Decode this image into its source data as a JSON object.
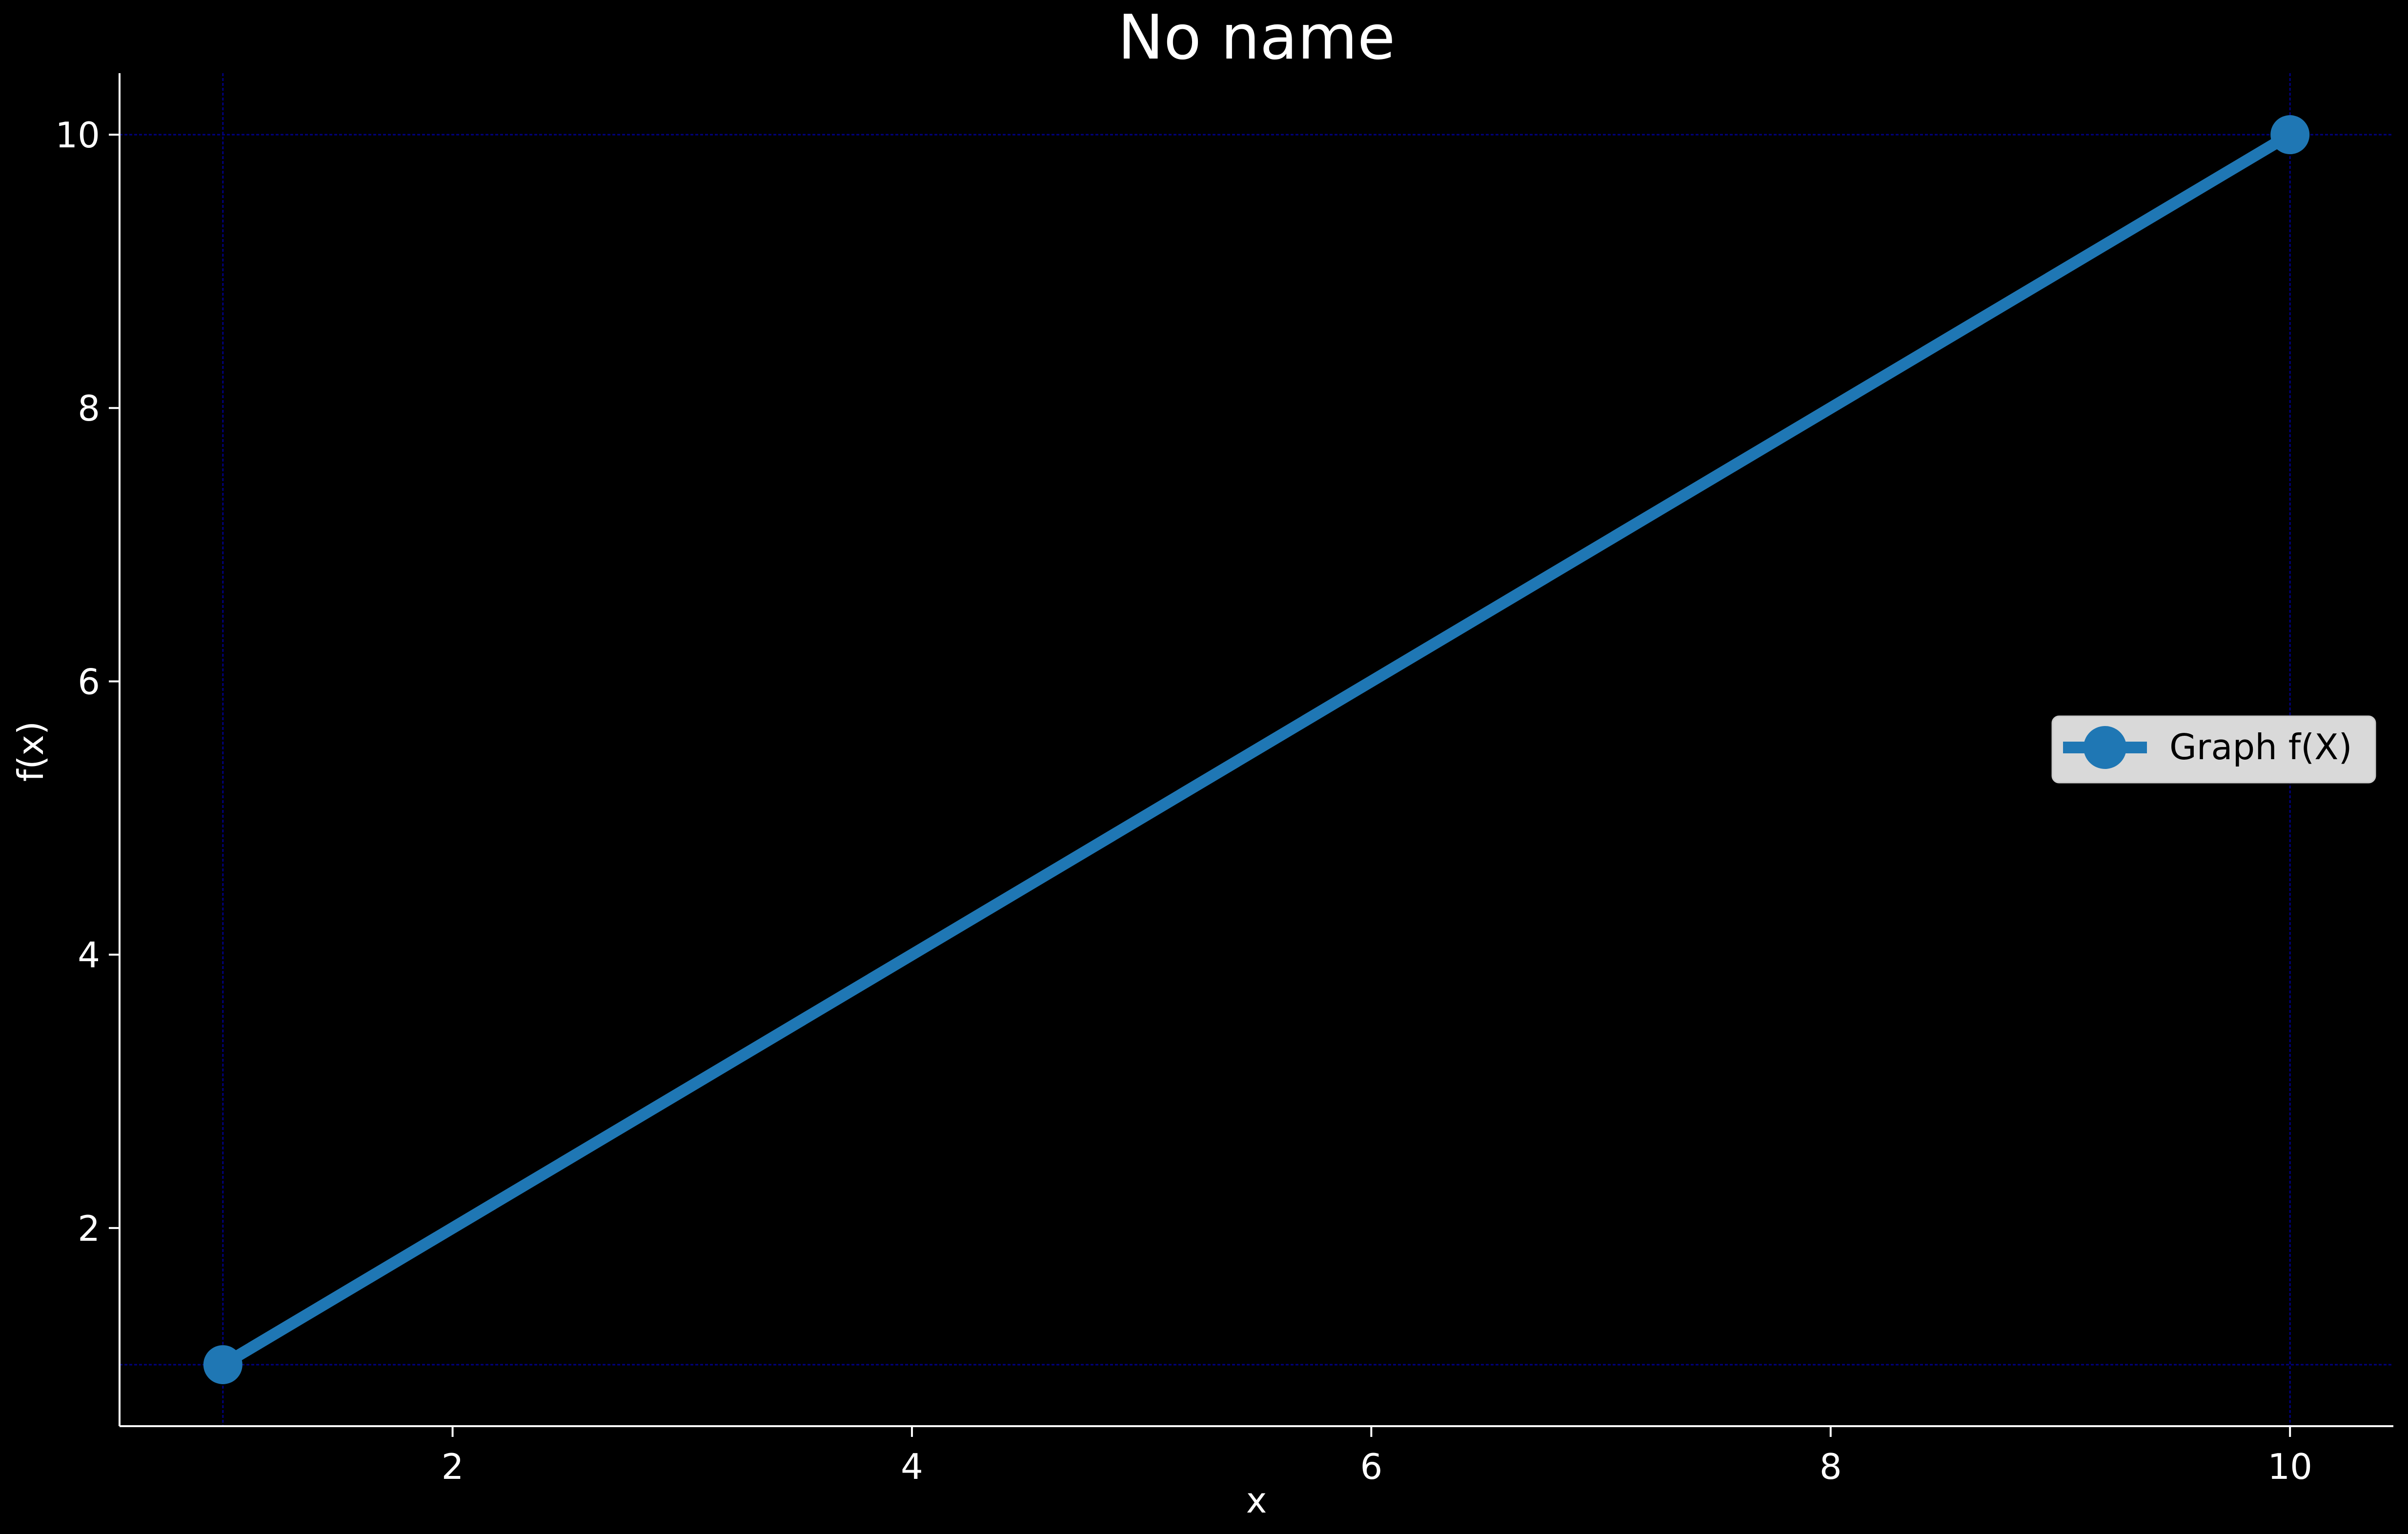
{
  "chart_data": {
    "type": "line",
    "title": "No name",
    "xlabel": "x",
    "ylabel": "f(x)",
    "xlim": [
      0.55,
      10.45
    ],
    "ylim": [
      0.55,
      10.45
    ],
    "x_ticks": [
      2,
      4,
      6,
      8,
      10
    ],
    "y_ticks": [
      2,
      4,
      6,
      8,
      10
    ],
    "x_tick_labels": [
      "2",
      "4",
      "6",
      "8",
      "10"
    ],
    "y_tick_labels": [
      "2",
      "4",
      "6",
      "8",
      "10"
    ],
    "grid": "minimal",
    "grid_lines": {
      "x": [
        1,
        10
      ],
      "y": [
        1,
        10
      ]
    },
    "legend_position": "center-right",
    "series": [
      {
        "name": "Graph f(X)",
        "color": "#1f77b4",
        "marker": "circle",
        "x": [
          1,
          10
        ],
        "y": [
          1,
          10
        ]
      }
    ]
  },
  "colors": {
    "background": "#000000",
    "axis": "#ffffff",
    "grid": "#000080",
    "legend_bg": "#d9d9d9"
  }
}
